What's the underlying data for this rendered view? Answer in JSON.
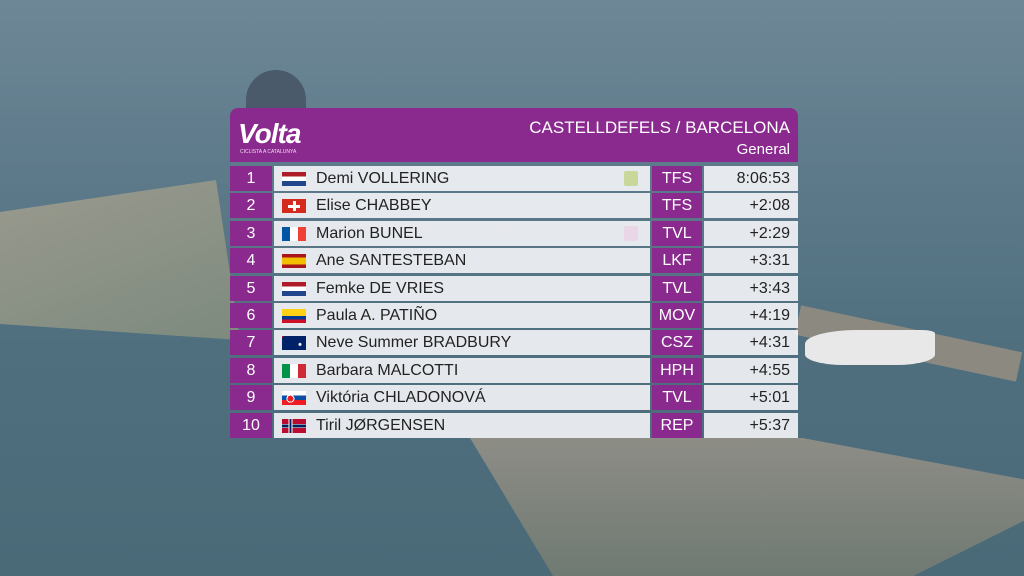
{
  "header": {
    "logo": "Volta",
    "logo_subtitle": "CICLISTA A CATALUNYA",
    "stage": "CASTELLDEFELS / BARCELONA",
    "classification": "General"
  },
  "table": {
    "rows": [
      [
        "1",
        "Demi VOLLERING",
        "TFS",
        "8:06:53"
      ],
      [
        "2",
        "Elise CHABBEY",
        "TFS",
        "+2:08"
      ],
      [
        "3",
        "Marion BUNEL",
        "TVL",
        "+2:29"
      ],
      [
        "4",
        "Ane SANTESTEBAN",
        "LKF",
        "+3:31"
      ],
      [
        "5",
        "Femke DE VRIES",
        "TVL",
        "+3:43"
      ],
      [
        "6",
        "Paula A. PATIÑO",
        "MOV",
        "+4:19"
      ],
      [
        "7",
        "Neve Summer BRADBURY",
        "CSZ",
        "+4:31"
      ],
      [
        "8",
        "Barbara MALCOTTI",
        "HPH",
        "+4:55"
      ],
      [
        "9",
        "Viktória CHLADONOVÁ",
        "TVL",
        "+5:01"
      ],
      [
        "10",
        "Tiril JØRGENSEN",
        "REP",
        "+5:37"
      ]
    ]
  }
}
